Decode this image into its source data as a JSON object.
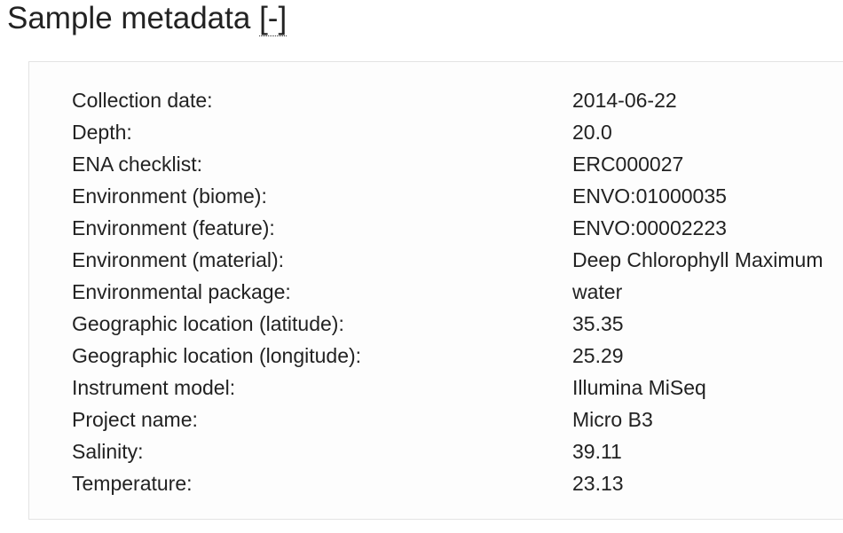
{
  "heading": {
    "title": "Sample metadata ",
    "toggle": "[-]"
  },
  "metadata": [
    {
      "key": "Collection date:",
      "value": "2014-06-22"
    },
    {
      "key": "Depth:",
      "value": "20.0"
    },
    {
      "key": "ENA checklist:",
      "value": "ERC000027"
    },
    {
      "key": "Environment (biome):",
      "value": "ENVO:01000035"
    },
    {
      "key": "Environment (feature):",
      "value": "ENVO:00002223"
    },
    {
      "key": "Environment (material):",
      "value": "Deep Chlorophyll Maximum"
    },
    {
      "key": "Environmental package:",
      "value": "water"
    },
    {
      "key": "Geographic location (latitude):",
      "value": "35.35"
    },
    {
      "key": "Geographic location (longitude):",
      "value": "25.29"
    },
    {
      "key": "Instrument model:",
      "value": "Illumina MiSeq"
    },
    {
      "key": "Project name:",
      "value": "Micro B3"
    },
    {
      "key": "Salinity:",
      "value": "39.11"
    },
    {
      "key": "Temperature:",
      "value": "23.13"
    }
  ]
}
